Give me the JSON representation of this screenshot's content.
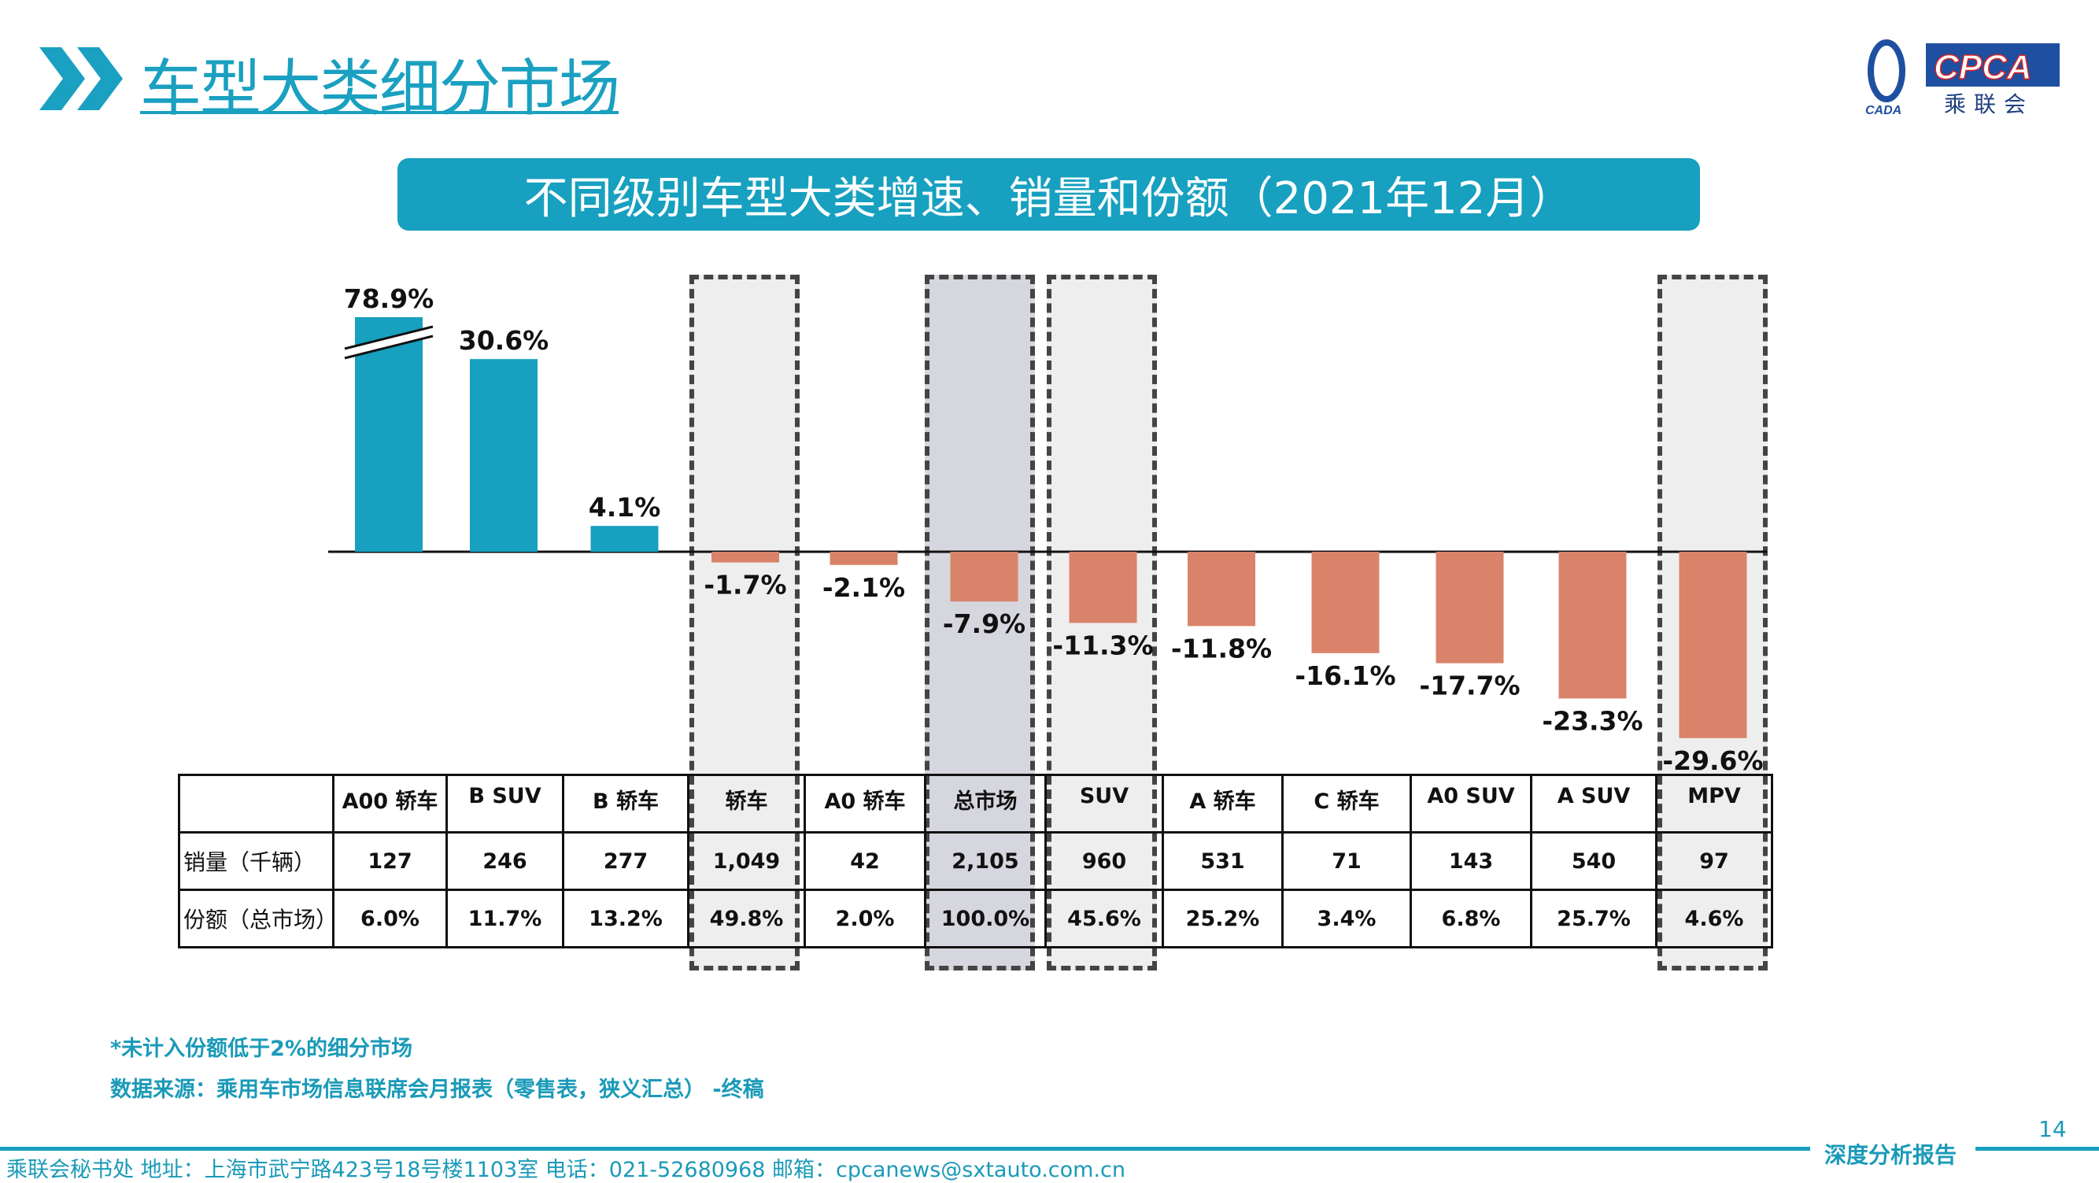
{
  "header": {
    "title": "车型大类细分市场",
    "logo_text": "CPCA",
    "logo_sub": "乘联会",
    "logo_small": "CADA"
  },
  "banner": "不同级别车型大类增速、销量和份额（2021年12月）",
  "chart_data": {
    "type": "bar",
    "title": "不同级别车型大类增速、销量和份额（2021年12月）",
    "categories": [
      "A00 轿车",
      "B SUV",
      "B 轿车",
      "轿车",
      "A0 轿车",
      "总市场",
      "SUV",
      "A 轿车",
      "C 轿车",
      "A0 SUV",
      "A SUV",
      "MPV"
    ],
    "values": [
      78.9,
      30.6,
      4.1,
      -1.7,
      -2.1,
      -7.9,
      -11.3,
      -11.8,
      -16.1,
      -17.7,
      -23.3,
      -29.6
    ],
    "data_labels": [
      "78.9%",
      "30.6%",
      "4.1%",
      "-1.7%",
      "-2.1%",
      "-7.9%",
      "-11.3%",
      "-11.8%",
      "-16.1%",
      "-17.7%",
      "-23.3%",
      "-29.6%"
    ],
    "axis_break_on": "A00 轿车",
    "highlighted": [
      "轿车",
      "总市场",
      "SUV",
      "MPV"
    ],
    "colors": {
      "positive": "#17a0bf",
      "negative": "#d9836a",
      "highlight": "#eeeeef",
      "total_highlight": "#d6d6de"
    },
    "table": {
      "rows": [
        {
          "label": "销量（千辆）",
          "values": [
            "127",
            "246",
            "277",
            "1,049",
            "42",
            "2,105",
            "960",
            "531",
            "71",
            "143",
            "540",
            "97"
          ]
        },
        {
          "label": "份额（总市场）",
          "values": [
            "6.0%",
            "11.7%",
            "13.2%",
            "49.8%",
            "2.0%",
            "100.0%",
            "45.6%",
            "25.2%",
            "3.4%",
            "6.8%",
            "25.7%",
            "4.6%"
          ]
        }
      ]
    }
  },
  "notes": {
    "note1": "*未计入份额低于2%的细分市场",
    "source": "数据来源：乘用车市场信息联席会月报表（零售表，狭义汇总） -终稿"
  },
  "footer": {
    "text": "乘联会秘书处  地址：上海市武宁路423号18号楼1103室  电话：021-52680968  邮箱：cpcanews@sxtauto.com.cn",
    "right": "深度分析报告",
    "page": "14"
  }
}
